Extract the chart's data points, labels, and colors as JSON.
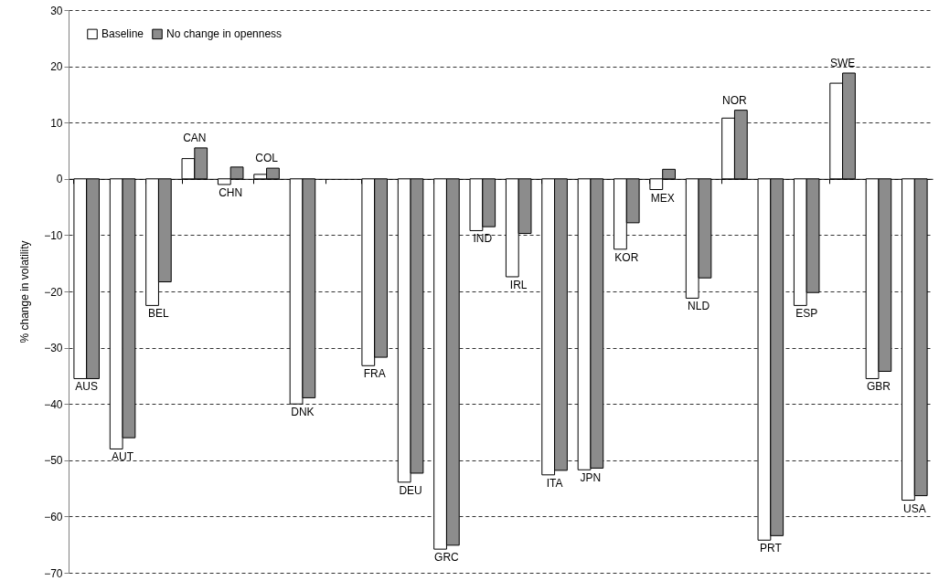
{
  "chart_data": {
    "type": "bar",
    "ylabel": "% change in volatility",
    "categories": [
      "AUS",
      "AUT",
      "BEL",
      "CAN",
      "CHN",
      "COL",
      "DNK",
      null,
      "FRA",
      "DEU",
      "GRC",
      "IND",
      "IRL",
      "ITA",
      "JPN",
      "KOR",
      "MEX",
      "NLD",
      "NOR",
      "PRT",
      "ESP",
      "SWE",
      "GBR",
      "USA"
    ],
    "series": [
      {
        "name": "Baseline",
        "color": "#ffffff",
        "values": [
          -35.5,
          -48,
          -22.5,
          3.6,
          -1,
          0.8,
          -40,
          null,
          -33.2,
          -53.9,
          -65.8,
          -9.2,
          -17.4,
          -52.6,
          -51.7,
          -12.5,
          -1.9,
          -21.2,
          10.8,
          -64.2,
          -22.5,
          17,
          -35.5,
          -57.1
        ]
      },
      {
        "name": "No change in openness",
        "color": "#8c8c8c",
        "values": [
          -35.5,
          -46,
          -18.3,
          5.5,
          2.1,
          1.9,
          -38.9,
          null,
          -31.7,
          -52.3,
          -65.1,
          -8.5,
          -9.7,
          -51.8,
          -51.4,
          -7.8,
          1.7,
          -17.6,
          12.2,
          -63.4,
          -20.2,
          18.8,
          -34.2,
          -56.3
        ]
      }
    ],
    "ylim": [
      -70,
      30
    ],
    "yticks": [
      -70,
      -60,
      -50,
      -40,
      -30,
      -20,
      -10,
      0,
      10,
      20,
      30
    ],
    "grid": "y",
    "legend": "top left",
    "tick_labels": "y"
  }
}
